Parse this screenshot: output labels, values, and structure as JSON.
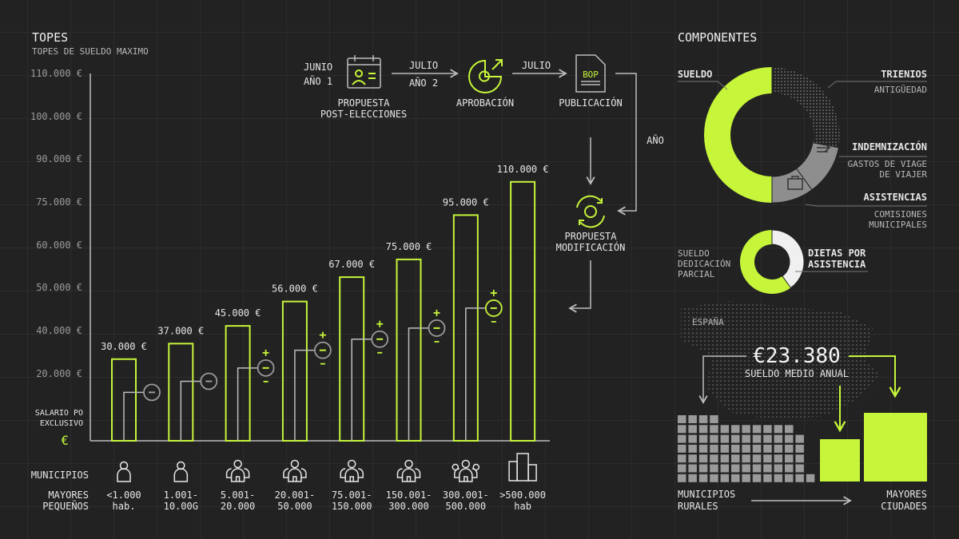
{
  "colors": {
    "accent": "#c6f53a",
    "background": "#222222",
    "neutral": "#9a9a9a",
    "light": "#f0f0f0"
  },
  "topes": {
    "title": "TOPES",
    "subtitle": "TOPES DE SUELDO MAXIMO",
    "y_side_label_1": "SALARIO PO",
    "y_side_label_2": "EXCLUSIVO",
    "currency_symbol": "€"
  },
  "chart_data": {
    "type": "bar",
    "title": "TOPES",
    "subtitle": "TOPES DE SUELDO MAXIMO",
    "y_tick_labels": [
      "110.000 €",
      "100.000 €",
      "90.000 €",
      "75.000 €",
      "60.000 €",
      "50.000 €",
      "40.000 €",
      "20.000 €"
    ],
    "categories": [
      "<1.000 hab.",
      "1.001-10.000",
      "5.001-20.000",
      "20.001-50.000",
      "75.001-150.000",
      "150.001-300.000",
      "300.001-500.000",
      ">500.000 hab"
    ],
    "values": [
      30000,
      37000,
      45000,
      56000,
      67000,
      75000,
      95000,
      110000
    ],
    "value_labels": [
      "30.000 €",
      "37.000 €",
      "45.000 €",
      "56.000 €",
      "67.000 €",
      "75.000 €",
      "95.000 €",
      "110.000 €"
    ],
    "secondary_values": [
      15000,
      20000,
      26000,
      34000,
      39000,
      44000,
      53000,
      null
    ],
    "grid": true
  },
  "municipios": {
    "row_label": "MUNICIPIOS",
    "size_label_1": "MAYORES",
    "size_label_2": "PEQUEÑOS",
    "icons": [
      "person-icon",
      "person-icon",
      "house-icon",
      "house-icon",
      "house-icon",
      "house-icon",
      "people-house-icon",
      "buildings-icon"
    ],
    "ranges": [
      [
        "<1.000",
        "hab."
      ],
      [
        "1.001-",
        "10.00G"
      ],
      [
        "5.001-",
        "20.000"
      ],
      [
        "20.001-",
        "50.000"
      ],
      [
        "75.001-",
        "150.000"
      ],
      [
        "150.001-",
        "300.000"
      ],
      [
        "300.001-",
        "500.000"
      ],
      [
        ">500.000",
        "hab"
      ]
    ]
  },
  "process": {
    "step1": {
      "time_1": "JUNIO",
      "time_2": "AÑO 1",
      "label_1": "PROPUESTA",
      "label_2": "POST-ELECCIONES",
      "icon": "calendar-person-icon"
    },
    "arrow1": {
      "label_1": "JULIO",
      "label_2": "AÑO 2"
    },
    "step2": {
      "label": "APROBACIÓN",
      "icon": "pie-growth-icon"
    },
    "arrow2": {
      "label": "JULIO"
    },
    "step3": {
      "label": "PUBLICACIÓN",
      "doc_text": "BOP",
      "icon": "document-icon"
    },
    "loop_label": "AÑO",
    "step4": {
      "label_1": "PROPUESTA",
      "label_2": "MODIFICACIÓN",
      "icon": "refresh-icon"
    }
  },
  "componentes": {
    "title": "COMPONENTES",
    "segments": [
      {
        "label": "SUELDO",
        "share": 0.5
      },
      {
        "label": "TRIENIOS",
        "sub": "ANTIGÜEDAD",
        "share": 0.28
      },
      {
        "label": "INDEMNIZACIÓN",
        "sub_1": "GASTOS DE VIAGE",
        "sub_2": "DE VIAJER",
        "share": 0.12
      },
      {
        "label": "ASISTENCIAS",
        "sub_1": "COMISIONES",
        "sub_2": "MUNICIPALES",
        "share": 0.1
      }
    ],
    "small": {
      "left_1": "SUELDO",
      "left_2": "DEDICACIÓN",
      "left_3": "PARCIAL",
      "right_1": "DIETAS POR",
      "right_2": "ASISTENCIA",
      "white_share": 0.4
    }
  },
  "espana": {
    "map_label": "ESPAÑA",
    "amount": "€23.380",
    "amount_label": "SUELDO MEDIO ANUAL",
    "left_1": "MUNICIPIOS",
    "left_2": "RURALES",
    "right_1": "MAYORES",
    "right_2": "CIUDADES"
  }
}
